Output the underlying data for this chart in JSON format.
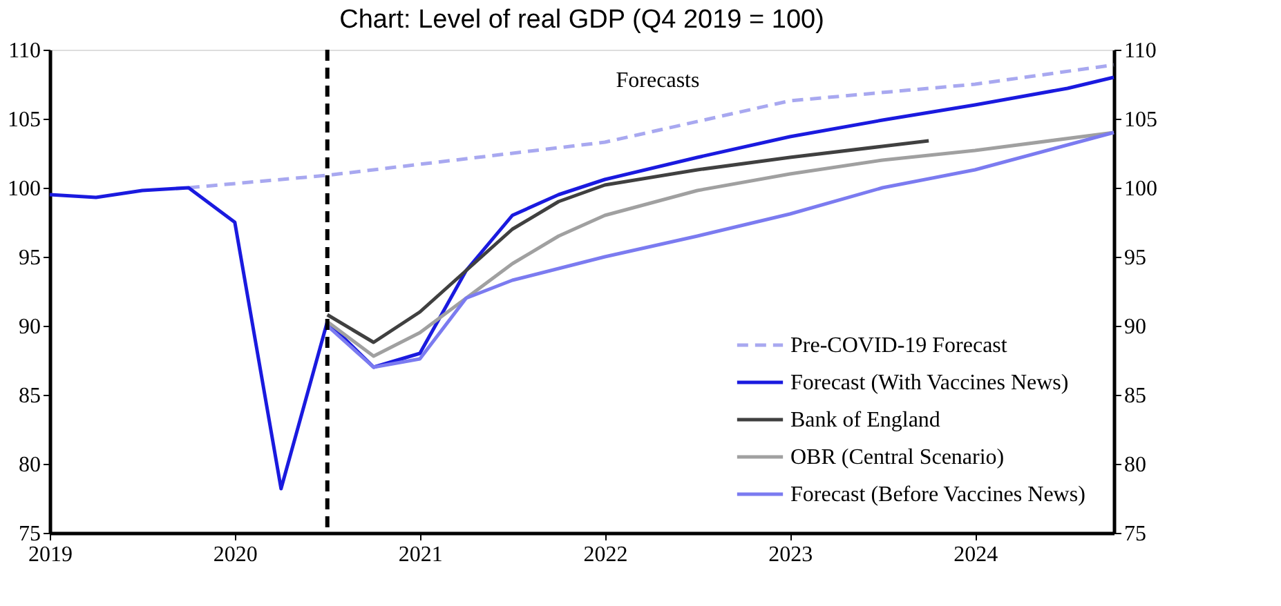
{
  "chart_data": {
    "type": "line",
    "title": "Chart: Level of real GDP (Q4 2019 = 100)",
    "annotations": [
      "Forecasts"
    ],
    "xlim": [
      2019,
      2024.75
    ],
    "xticks": [
      2019,
      2020,
      2021,
      2022,
      2023,
      2024
    ],
    "ylim": [
      75,
      110
    ],
    "yticks": [
      75,
      80,
      85,
      90,
      95,
      100,
      105,
      110
    ],
    "y2lim": [
      75,
      110
    ],
    "y2ticks": [
      75,
      80,
      85,
      90,
      95,
      100,
      105,
      110
    ],
    "grid": false,
    "legend": "bottom right",
    "marker": "none",
    "ref_lines": [
      {
        "axis": "x",
        "value": 2020.5,
        "color": "#000000",
        "line_style": "dashed"
      }
    ],
    "series": [
      {
        "name": "Pre-COVID-19 Forecast",
        "color": "#a8a8f0",
        "line_style": "dashed",
        "x": [
          2019.75,
          2020.5,
          2021,
          2022,
          2023,
          2024,
          2024.75
        ],
        "values": [
          100,
          100.9,
          101.7,
          103.3,
          106.3,
          107.5,
          108.9
        ]
      },
      {
        "name": "Forecast (With Vaccines News)",
        "color": "#1a1adf",
        "line_style": "solid",
        "x": [
          2019,
          2019.25,
          2019.5,
          2019.75,
          2020,
          2020.25,
          2020.5,
          2020.75,
          2021,
          2021.25,
          2021.5,
          2021.75,
          2022,
          2022.5,
          2023,
          2023.5,
          2024,
          2024.5,
          2024.75
        ],
        "values": [
          99.5,
          99.3,
          99.8,
          100,
          97.5,
          78.2,
          90.3,
          87,
          88,
          94,
          98,
          99.5,
          100.6,
          102.2,
          103.7,
          104.9,
          106,
          107.2,
          108
        ]
      },
      {
        "name": "Bank of England",
        "color": "#404040",
        "line_style": "solid",
        "x": [
          2020.5,
          2020.75,
          2021,
          2021.25,
          2021.5,
          2021.75,
          2022,
          2022.5,
          2023,
          2023.5,
          2023.75
        ],
        "values": [
          90.8,
          88.8,
          91,
          94,
          97,
          99,
          100.2,
          101.3,
          102.2,
          103,
          103.4
        ]
      },
      {
        "name": "OBR (Central Scenario)",
        "color": "#a0a0a0",
        "line_style": "solid",
        "x": [
          2020.5,
          2020.75,
          2021,
          2021.25,
          2021.5,
          2021.75,
          2022,
          2022.5,
          2023,
          2023.5,
          2024,
          2024.75
        ],
        "values": [
          90.3,
          87.8,
          89.5,
          92,
          94.5,
          96.5,
          98,
          99.8,
          101,
          102,
          102.7,
          104
        ]
      },
      {
        "name": "Forecast (Before Vaccines News)",
        "color": "#7b7bf0",
        "line_style": "solid",
        "x": [
          2020.5,
          2020.75,
          2021,
          2021.25,
          2021.5,
          2022,
          2022.5,
          2023,
          2023.5,
          2024,
          2024.75
        ],
        "values": [
          90,
          87,
          87.6,
          92,
          93.3,
          95,
          96.5,
          98.1,
          100,
          101.3,
          104
        ]
      }
    ]
  }
}
